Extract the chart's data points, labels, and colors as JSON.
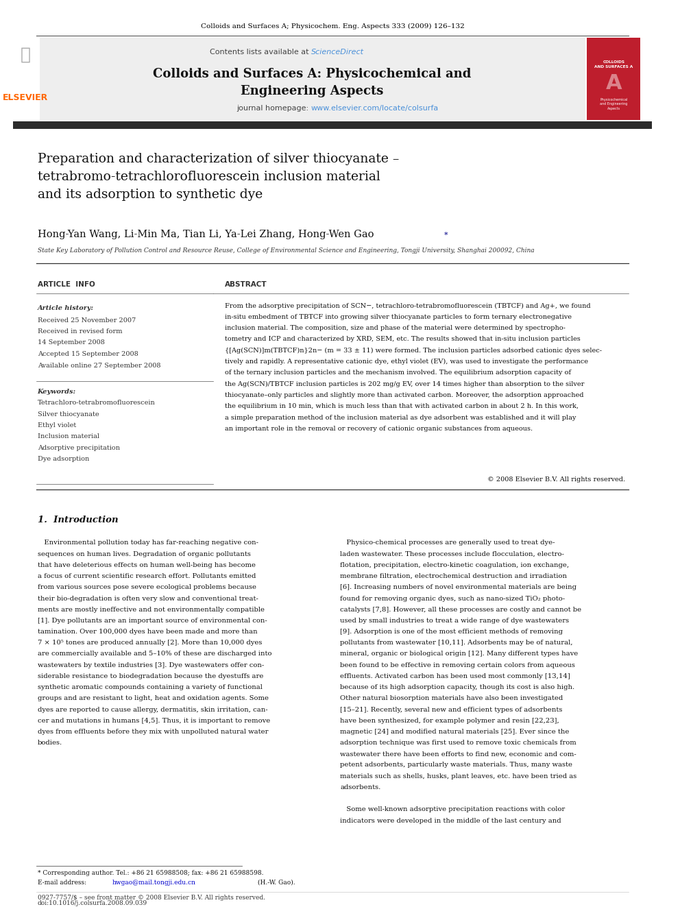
{
  "page_width": 9.92,
  "page_height": 13.23,
  "bg_color": "#ffffff",
  "top_citation": "Colloids and Surfaces A; Physicochem. Eng. Aspects 333 (2009) 126–132",
  "sciencedirect_color": "#4a90d9",
  "journal_title_line1": "Colloids and Surfaces A: Physicochemical and",
  "journal_title_line2": "Engineering Aspects",
  "journal_homepage_url": "www.elsevier.com/locate/colsurfa",
  "dark_bar_color": "#2c2c2c",
  "paper_title": "Preparation and characterization of silver thiocyanate –\ntetrabromo-tetrachlorofluorescein inclusion material\nand its adsorption to synthetic dye",
  "affiliation": "State Key Laboratory of Pollution Control and Resource Reuse, College of Environmental Science and Engineering, Tongji University, Shanghai 200092, China",
  "article_info_header": "ARTICLE  INFO",
  "abstract_header": "ABSTRACT",
  "keyword_1": "Tetrachloro-tetrabromofluorescein",
  "keyword_2": "Silver thiocyanate",
  "keyword_3": "Ethyl violet",
  "keyword_4": "Inclusion material",
  "keyword_5": "Adsorptive precipitation",
  "keyword_6": "Dye adsorption",
  "copyright": "© 2008 Elsevier B.V. All rights reserved.",
  "section1_title": "1.  Introduction",
  "footnote_star": "* Corresponding author. Tel.: +86 21 65988508; fax: +86 21 65988598.",
  "footer_line1": "0927-7757/$ – see front matter © 2008 Elsevier B.V. All rights reserved.",
  "footer_line2": "doi:10.1016/j.colsurfa.2008.09.039",
  "link_color": "#0000cc",
  "intro1_lines": [
    "   Environmental pollution today has far-reaching negative con-",
    "sequences on human lives. Degradation of organic pollutants",
    "that have deleterious effects on human well-being has become",
    "a focus of current scientific research effort. Pollutants emitted",
    "from various sources pose severe ecological problems because",
    "their bio-degradation is often very slow and conventional treat-",
    "ments are mostly ineffective and not environmentally compatible",
    "[1]. Dye pollutants are an important source of environmental con-",
    "tamination. Over 100,000 dyes have been made and more than",
    "7 × 10⁵ tones are produced annually [2]. More than 10,000 dyes",
    "are commercially available and 5–10% of these are discharged into",
    "wastewaters by textile industries [3]. Dye wastewaters offer con-",
    "siderable resistance to biodegradation because the dyestuffs are",
    "synthetic aromatic compounds containing a variety of functional",
    "groups and are resistant to light, heat and oxidation agents. Some",
    "dyes are reported to cause allergy, dermatitis, skin irritation, can-",
    "cer and mutations in humans [4,5]. Thus, it is important to remove",
    "dyes from effluents before they mix with unpolluted natural water",
    "bodies."
  ],
  "intro2_lines": [
    "   Physico-chemical processes are generally used to treat dye-",
    "laden wastewater. These processes include flocculation, electro-",
    "flotation, precipitation, electro-kinetic coagulation, ion exchange,",
    "membrane filtration, electrochemical destruction and irradiation",
    "[6]. Increasing numbers of novel environmental materials are being",
    "found for removing organic dyes, such as nano-sized TiO₂ photo-",
    "catalysts [7,8]. However, all these processes are costly and cannot be",
    "used by small industries to treat a wide range of dye wastewaters",
    "[9]. Adsorption is one of the most efficient methods of removing",
    "pollutants from wastewater [10,11]. Adsorbents may be of natural,",
    "mineral, organic or biological origin [12]. Many different types have",
    "been found to be effective in removing certain colors from aqueous",
    "effluents. Activated carbon has been used most commonly [13,14]",
    "because of its high adsorption capacity, though its cost is also high.",
    "Other natural biosorption materials have also been investigated",
    "[15–21]. Recently, several new and efficient types of adsorbents",
    "have been synthesized, for example polymer and resin [22,23],",
    "magnetic [24] and modified natural materials [25]. Ever since the",
    "adsorption technique was first used to remove toxic chemicals from",
    "wastewater there have been efforts to find new, economic and com-",
    "petent adsorbents, particularly waste materials. Thus, many waste",
    "materials such as shells, husks, plant leaves, etc. have been tried as",
    "adsorbents.",
    "",
    "   Some well-known adsorptive precipitation reactions with color",
    "indicators were developed in the middle of the last century and"
  ],
  "abstract_lines": [
    "From the adsorptive precipitation of SCN−, tetrachloro-tetrabromofluorescein (TBTCF) and Ag+, we found",
    "in-situ embedment of TBTCF into growing silver thiocyanate particles to form ternary electronegative",
    "inclusion material. The composition, size and phase of the material were determined by spectropho-",
    "tometry and ICP and characterized by XRD, SEM, etc. The results showed that in-situ inclusion particles",
    "{[Ag(SCN)]m(TBTCF)n}2n− (m = 33 ± 11) were formed. The inclusion particles adsorbed cationic dyes selec-",
    "tively and rapidly. A representative cationic dye, ethyl violet (EV), was used to investigate the performance",
    "of the ternary inclusion particles and the mechanism involved. The equilibrium adsorption capacity of",
    "the Ag(SCN)/TBTCF inclusion particles is 202 mg/g EV, over 14 times higher than absorption to the silver",
    "thiocyanate–only particles and slightly more than activated carbon. Moreover, the adsorption approached",
    "the equilibrium in 10 min, which is much less than that with activated carbon in about 2 h. In this work,",
    "a simple preparation method of the inclusion material as dye adsorbent was established and it will play",
    "an important role in the removal or recovery of cationic organic substances from aqueous."
  ]
}
